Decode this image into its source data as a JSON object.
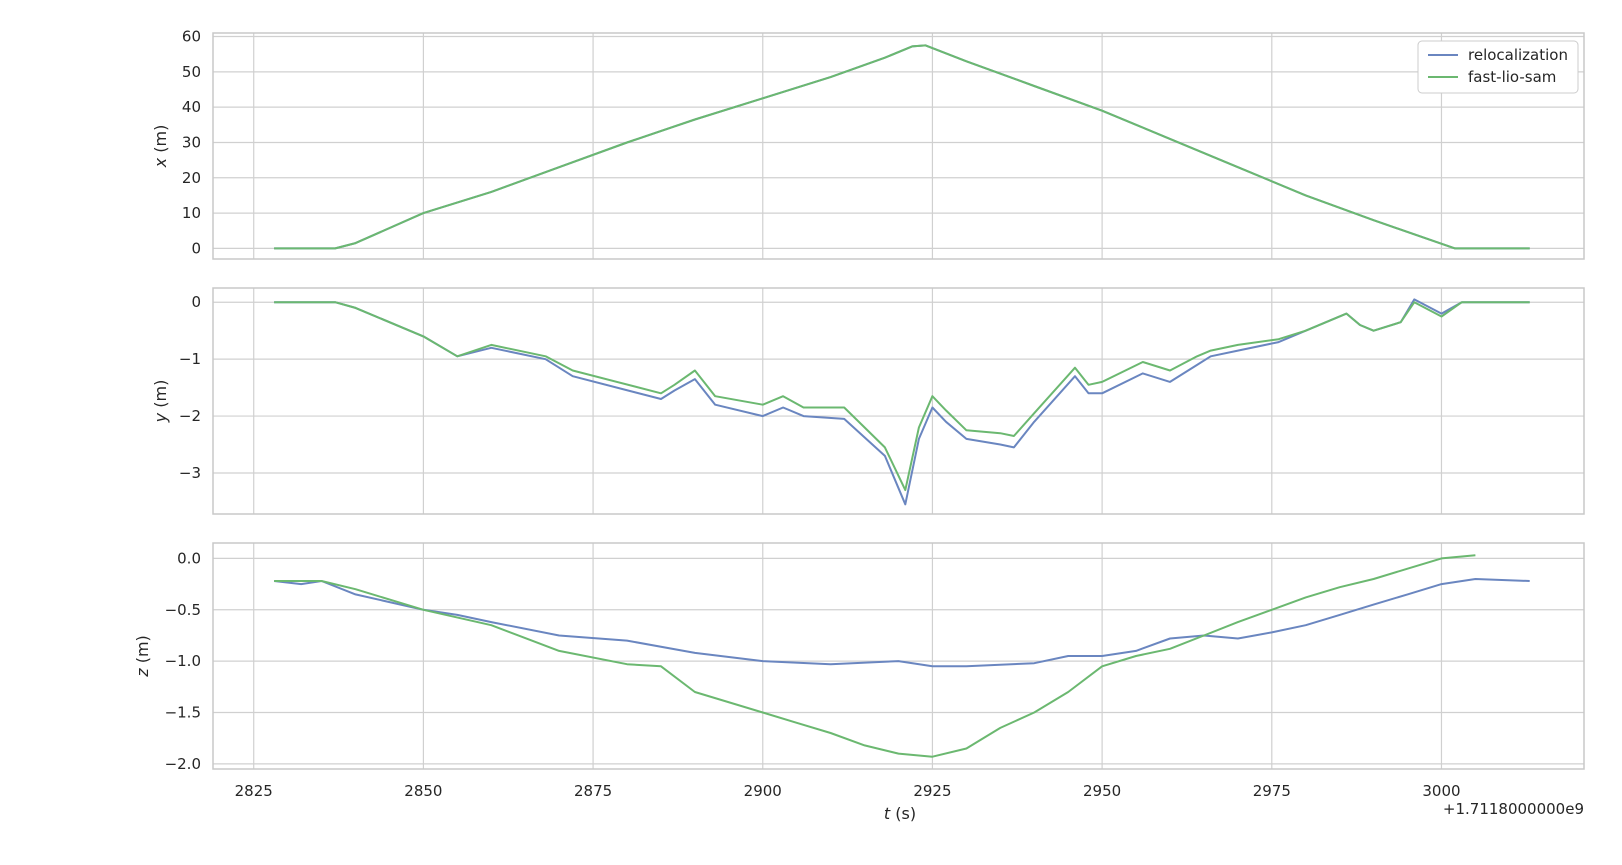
{
  "colors": {
    "relocalization": "#6a86c0",
    "fast_lio_sam": "#6bb870",
    "grid": "#d0d0d0",
    "frame": "#c8c8c8"
  },
  "chart_data": {
    "type": "line",
    "x_offset_label": "+1.7118000000e9",
    "xlabel_var": "t",
    "xlabel_unit": " (s)",
    "xlim": [
      2819,
      3021
    ],
    "xticks": [
      2825,
      2850,
      2875,
      2900,
      2925,
      2950,
      2975,
      3000
    ],
    "legend": {
      "placement": "top-right",
      "entries": [
        "relocalization",
        "fast-lio-sam"
      ]
    },
    "grid": true,
    "panels": [
      {
        "ylabel_var": "x",
        "ylabel_unit": " (m)",
        "ylim": [
          -3,
          61
        ],
        "yticks": [
          0,
          10,
          20,
          30,
          40,
          50,
          60
        ],
        "ytick_labels": [
          "0",
          "10",
          "20",
          "30",
          "40",
          "50",
          "60"
        ],
        "series": [
          {
            "name": "relocalization",
            "x": [
              2828,
              2837,
              2840,
              2850,
              2860,
              2870,
              2880,
              2890,
              2900,
              2910,
              2918,
              2922,
              2924,
              2930,
              2940,
              2950,
              2960,
              2970,
              2980,
              2990,
              3002,
              3013
            ],
            "y": [
              0,
              0,
              1.5,
              10,
              16,
              23,
              30,
              36.5,
              42.5,
              48.5,
              54,
              57.2,
              57.5,
              53,
              46,
              39,
              31,
              23,
              15,
              8,
              0,
              0
            ]
          },
          {
            "name": "fast-lio-sam",
            "x": [
              2828,
              2837,
              2840,
              2850,
              2860,
              2870,
              2880,
              2890,
              2900,
              2910,
              2918,
              2922,
              2924,
              2930,
              2940,
              2950,
              2960,
              2970,
              2980,
              2990,
              3002,
              3013
            ],
            "y": [
              0,
              0,
              1.5,
              10,
              16,
              23,
              30,
              36.5,
              42.5,
              48.5,
              54,
              57.2,
              57.5,
              53,
              46,
              39,
              31,
              23,
              15,
              8,
              0,
              0
            ]
          }
        ]
      },
      {
        "ylabel_var": "y",
        "ylabel_unit": " (m)",
        "ylim": [
          -3.72,
          0.25
        ],
        "yticks": [
          0,
          -1,
          -2,
          -3
        ],
        "ytick_labels": [
          "0",
          "−1",
          "−2",
          "−3"
        ],
        "series": [
          {
            "name": "relocalization",
            "x": [
              2828,
              2837,
              2840,
              2850,
              2855,
              2860,
              2868,
              2872,
              2885,
              2887,
              2890,
              2893,
              2900,
              2903,
              2906,
              2912,
              2918,
              2921,
              2923,
              2925,
              2927,
              2930,
              2935,
              2937,
              2940,
              2946,
              2948,
              2950,
              2956,
              2960,
              2964,
              2966,
              2970,
              2976,
              2980,
              2986,
              2988,
              2990,
              2994,
              2996,
              3000,
              3003,
              3013
            ],
            "y": [
              0,
              0,
              -0.1,
              -0.6,
              -0.95,
              -0.8,
              -1.0,
              -1.3,
              -1.7,
              -1.55,
              -1.35,
              -1.8,
              -2.0,
              -1.85,
              -2.0,
              -2.05,
              -2.7,
              -3.55,
              -2.4,
              -1.85,
              -2.1,
              -2.4,
              -2.5,
              -2.55,
              -2.1,
              -1.3,
              -1.6,
              -1.6,
              -1.25,
              -1.4,
              -1.1,
              -0.95,
              -0.85,
              -0.7,
              -0.5,
              -0.2,
              -0.4,
              -0.5,
              -0.35,
              0.05,
              -0.2,
              0,
              0
            ]
          },
          {
            "name": "fast-lio-sam",
            "x": [
              2828,
              2837,
              2840,
              2850,
              2855,
              2860,
              2868,
              2872,
              2885,
              2887,
              2890,
              2893,
              2900,
              2903,
              2906,
              2912,
              2918,
              2921,
              2923,
              2925,
              2927,
              2930,
              2935,
              2937,
              2940,
              2946,
              2948,
              2950,
              2956,
              2960,
              2964,
              2966,
              2970,
              2976,
              2980,
              2986,
              2988,
              2990,
              2994,
              2996,
              3000,
              3003,
              3013
            ],
            "y": [
              0,
              0,
              -0.1,
              -0.6,
              -0.95,
              -0.75,
              -0.95,
              -1.2,
              -1.6,
              -1.45,
              -1.2,
              -1.65,
              -1.8,
              -1.65,
              -1.85,
              -1.85,
              -2.55,
              -3.3,
              -2.2,
              -1.65,
              -1.9,
              -2.25,
              -2.3,
              -2.35,
              -1.95,
              -1.15,
              -1.45,
              -1.4,
              -1.05,
              -1.2,
              -0.95,
              -0.85,
              -0.75,
              -0.65,
              -0.5,
              -0.2,
              -0.4,
              -0.5,
              -0.35,
              0,
              -0.25,
              0,
              0
            ]
          }
        ]
      },
      {
        "ylabel_var": "z",
        "ylabel_unit": " (m)",
        "ylim": [
          -2.05,
          0.15
        ],
        "yticks": [
          0,
          -0.5,
          -1,
          -1.5,
          -2
        ],
        "ytick_labels": [
          "0.0",
          "−0.5",
          "−1.0",
          "−1.5",
          "−2.0"
        ],
        "series": [
          {
            "name": "relocalization",
            "x": [
              2828,
              2832,
              2835,
              2840,
              2850,
              2855,
              2860,
              2870,
              2880,
              2890,
              2900,
              2910,
              2920,
              2925,
              2930,
              2940,
              2945,
              2950,
              2955,
              2960,
              2965,
              2970,
              2975,
              2980,
              2985,
              2990,
              2995,
              3000,
              3005,
              3013
            ],
            "y": [
              -0.22,
              -0.25,
              -0.22,
              -0.35,
              -0.5,
              -0.55,
              -0.62,
              -0.75,
              -0.8,
              -0.92,
              -1.0,
              -1.03,
              -1.0,
              -1.05,
              -1.05,
              -1.02,
              -0.95,
              -0.95,
              -0.9,
              -0.78,
              -0.75,
              -0.78,
              -0.72,
              -0.65,
              -0.55,
              -0.45,
              -0.35,
              -0.25,
              -0.2,
              -0.22
            ]
          },
          {
            "name": "fast-lio-sam",
            "x": [
              2828,
              2835,
              2840,
              2850,
              2860,
              2870,
              2880,
              2885,
              2890,
              2900,
              2905,
              2910,
              2915,
              2920,
              2925,
              2930,
              2935,
              2940,
              2945,
              2950,
              2955,
              2960,
              2965,
              2970,
              2975,
              2980,
              2985,
              2990,
              2995,
              3000,
              3005
            ],
            "y": [
              -0.22,
              -0.22,
              -0.3,
              -0.5,
              -0.65,
              -0.9,
              -1.03,
              -1.05,
              -1.3,
              -1.5,
              -1.6,
              -1.7,
              -1.82,
              -1.9,
              -1.93,
              -1.85,
              -1.65,
              -1.5,
              -1.3,
              -1.05,
              -0.95,
              -0.88,
              -0.75,
              -0.62,
              -0.5,
              -0.38,
              -0.28,
              -0.2,
              -0.1,
              0,
              0.03
            ]
          }
        ]
      }
    ]
  }
}
